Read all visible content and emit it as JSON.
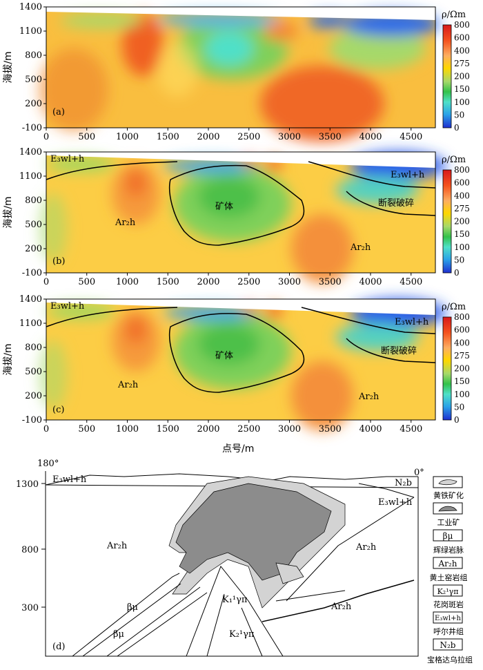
{
  "panels": [
    {
      "id": "a",
      "label": "(a)"
    },
    {
      "id": "b",
      "label": "(b)"
    },
    {
      "id": "c",
      "label": "(c)"
    },
    {
      "id": "d",
      "label": "(d)"
    }
  ],
  "chart_data": [
    {
      "type": "heatmap",
      "panel": "(a)",
      "ylabel": "海拔/m",
      "xlim": [
        0,
        4800
      ],
      "ylim": [
        -100,
        1400
      ],
      "x_ticks": [
        "0",
        "500",
        "1000",
        "1500",
        "2000",
        "2500",
        "3000",
        "3500",
        "4000",
        "4500"
      ],
      "y_ticks": [
        "1400",
        "1100",
        "800",
        "500",
        "200",
        "-100"
      ],
      "colorbar": {
        "title": "ρ/Ωm",
        "ticks": [
          "800",
          "600",
          "400",
          "275",
          "200",
          "150",
          "100",
          "50",
          "0"
        ]
      }
    },
    {
      "type": "heatmap",
      "panel": "(b)",
      "ylabel": "海拔/m",
      "xlim": [
        0,
        4800
      ],
      "ylim": [
        -100,
        1400
      ],
      "x_ticks": [
        "0",
        "500",
        "1000",
        "1500",
        "2000",
        "2500",
        "3000",
        "3500",
        "4000",
        "4500"
      ],
      "y_ticks": [
        "1400",
        "1100",
        "800",
        "500",
        "200",
        "-100"
      ],
      "colorbar": {
        "title": "ρ/Ωm",
        "ticks": [
          "800",
          "600",
          "400",
          "275",
          "200",
          "150",
          "100",
          "50",
          "0"
        ]
      },
      "annotations": [
        "E₃wl+h",
        "E₃wl+h",
        "矿体",
        "Ar₂h",
        "Ar₂h",
        "断裂破碎"
      ]
    },
    {
      "type": "heatmap",
      "panel": "(c)",
      "ylabel": "海拔/m",
      "xlabel": "点号/m",
      "xlim": [
        0,
        4800
      ],
      "ylim": [
        -100,
        1400
      ],
      "x_ticks": [
        "0",
        "500",
        "1000",
        "1500",
        "2000",
        "2500",
        "3000",
        "3500",
        "4000",
        "4500"
      ],
      "y_ticks": [
        "1400",
        "1100",
        "800",
        "500",
        "200",
        "-100"
      ],
      "colorbar": {
        "title": "ρ/Ωm",
        "ticks": [
          "800",
          "600",
          "400",
          "275",
          "200",
          "150",
          "100",
          "50",
          "0"
        ]
      },
      "annotations": [
        "E₃wl+h",
        "E₃wl+h",
        "矿体",
        "Ar₂h",
        "Ar₂h",
        "断裂破碎"
      ]
    }
  ],
  "section_d": {
    "angle_left": "180°",
    "angle_right": "0°",
    "y_ticks": [
      "1300",
      "800",
      "300"
    ],
    "labels": [
      "E₃wl+h",
      "N₂b",
      "E₃wl+h",
      "Ar₂h",
      "Ar₂h",
      "Ar₂h",
      "βμ",
      "βμ",
      "K₁¹γπ",
      "K₂¹γπ"
    ]
  },
  "legend": [
    {
      "sym": "",
      "label": "黄铁矿化"
    },
    {
      "sym": "",
      "label": "工业矿"
    },
    {
      "sym": "βμ",
      "label": "辉绿岩脉"
    },
    {
      "sym": "Ar₂h",
      "label": "黄土窑岩组"
    },
    {
      "sym": "K₂¹γπ",
      "label": "花岗斑岩"
    },
    {
      "sym": "E₃wl+h",
      "label": "呼尔井组"
    },
    {
      "sym": "N₂b",
      "label": "宝格达乌拉组"
    }
  ]
}
